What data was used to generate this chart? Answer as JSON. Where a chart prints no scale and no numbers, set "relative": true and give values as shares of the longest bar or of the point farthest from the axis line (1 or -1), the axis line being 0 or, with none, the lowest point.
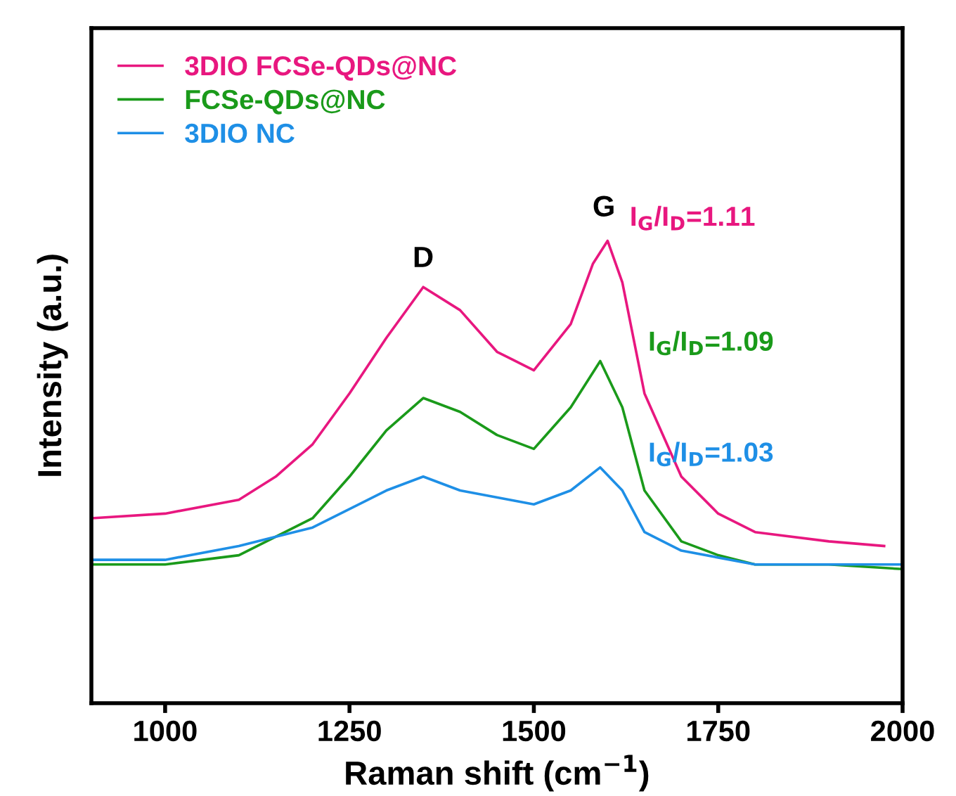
{
  "chart_data": {
    "type": "line",
    "relative": true,
    "xlabel": "Raman shift (cm$^{−1}$)",
    "ylabel": "Intensity (a.u.)",
    "xlim": [
      900,
      2000
    ],
    "xticks": [
      1000,
      1250,
      1500,
      1750,
      2000
    ],
    "legend": "top left",
    "grid": false,
    "annotations": [
      "D",
      "G",
      "I$_{G}$/I$_{D}$=1.11",
      "I$_{G}$/I$_{D}$=1.09",
      "I$_{G}$/I$_{D}$=1.03"
    ],
    "series": [
      {
        "name": "3DIO FCSe-QDs@NC",
        "color": "#e8177f",
        "x": [
          900,
          1000,
          1100,
          1150,
          1200,
          1250,
          1300,
          1350,
          1400,
          1450,
          1500,
          1550,
          1580,
          1600,
          1620,
          1650,
          1700,
          1750,
          1800,
          1900,
          1975
        ],
        "values": [
          0.4,
          0.41,
          0.44,
          0.49,
          0.56,
          0.67,
          0.79,
          0.9,
          0.85,
          0.76,
          0.72,
          0.82,
          0.95,
          1.0,
          0.91,
          0.67,
          0.49,
          0.41,
          0.37,
          0.35,
          0.34
        ]
      },
      {
        "name": "FCSe-QDs@NC",
        "color": "#1a9a1a",
        "x": [
          900,
          1000,
          1100,
          1200,
          1250,
          1300,
          1350,
          1400,
          1450,
          1500,
          1550,
          1590,
          1620,
          1650,
          1700,
          1750,
          1800,
          1900,
          2000
        ],
        "values": [
          0.3,
          0.3,
          0.32,
          0.4,
          0.49,
          0.59,
          0.66,
          0.63,
          0.58,
          0.55,
          0.64,
          0.74,
          0.64,
          0.46,
          0.35,
          0.32,
          0.3,
          0.3,
          0.29
        ]
      },
      {
        "name": "3DIO NC",
        "color": "#1e8fe6",
        "x": [
          900,
          1000,
          1100,
          1200,
          1300,
          1350,
          1400,
          1500,
          1550,
          1590,
          1620,
          1650,
          1700,
          1800,
          1900,
          2000
        ],
        "values": [
          0.31,
          0.31,
          0.34,
          0.38,
          0.46,
          0.49,
          0.46,
          0.43,
          0.46,
          0.51,
          0.46,
          0.37,
          0.33,
          0.3,
          0.3,
          0.3
        ]
      }
    ]
  }
}
